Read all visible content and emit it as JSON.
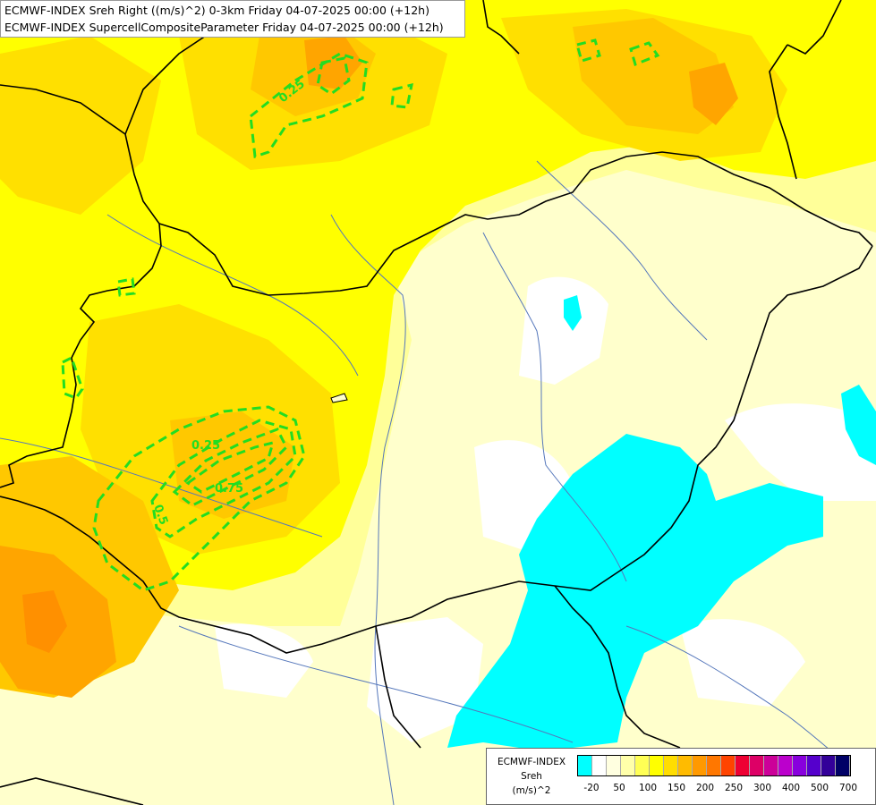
{
  "title_lines": [
    "ECMWF-INDEX Sreh Right ((m/s)^2) 0-3km Friday 04-07-2025 00:00 (+12h)",
    "ECMWF-INDEX SupercellCompositeParameter Friday 04-07-2025 00:00 (+12h)"
  ],
  "legend": {
    "line1": "ECMWF-INDEX",
    "line2": "Sreh",
    "line3": "(m/s)^2",
    "colors": [
      "#00ffff",
      "#ffffff",
      "#ffffe0",
      "#ffffaa",
      "#ffff55",
      "#ffff00",
      "#ffdd00",
      "#ffbb00",
      "#ff9900",
      "#ff7700",
      "#ff4400",
      "#ee0033",
      "#dd0066",
      "#cc0099",
      "#bb00cc",
      "#8800dd",
      "#5500cc",
      "#330099",
      "#000066"
    ],
    "ticks": [
      "-20",
      "50",
      "100",
      "150",
      "200",
      "250",
      "300",
      "400",
      "500",
      "700"
    ]
  },
  "contour_labels": {
    "north": "0.25",
    "south_a": "0.25",
    "south_b": "0.5",
    "south_c": "0.75"
  },
  "map_colors": {
    "pale": "#ffffcc",
    "light": "#ffff99",
    "yellow": "#ffff00",
    "deep_yellow": "#ffe000",
    "orange_light": "#ffc800",
    "orange": "#ffa500",
    "cyan": "#00ffff",
    "contour": "#22dd22",
    "border": "#000000",
    "river": "#5577bb"
  }
}
